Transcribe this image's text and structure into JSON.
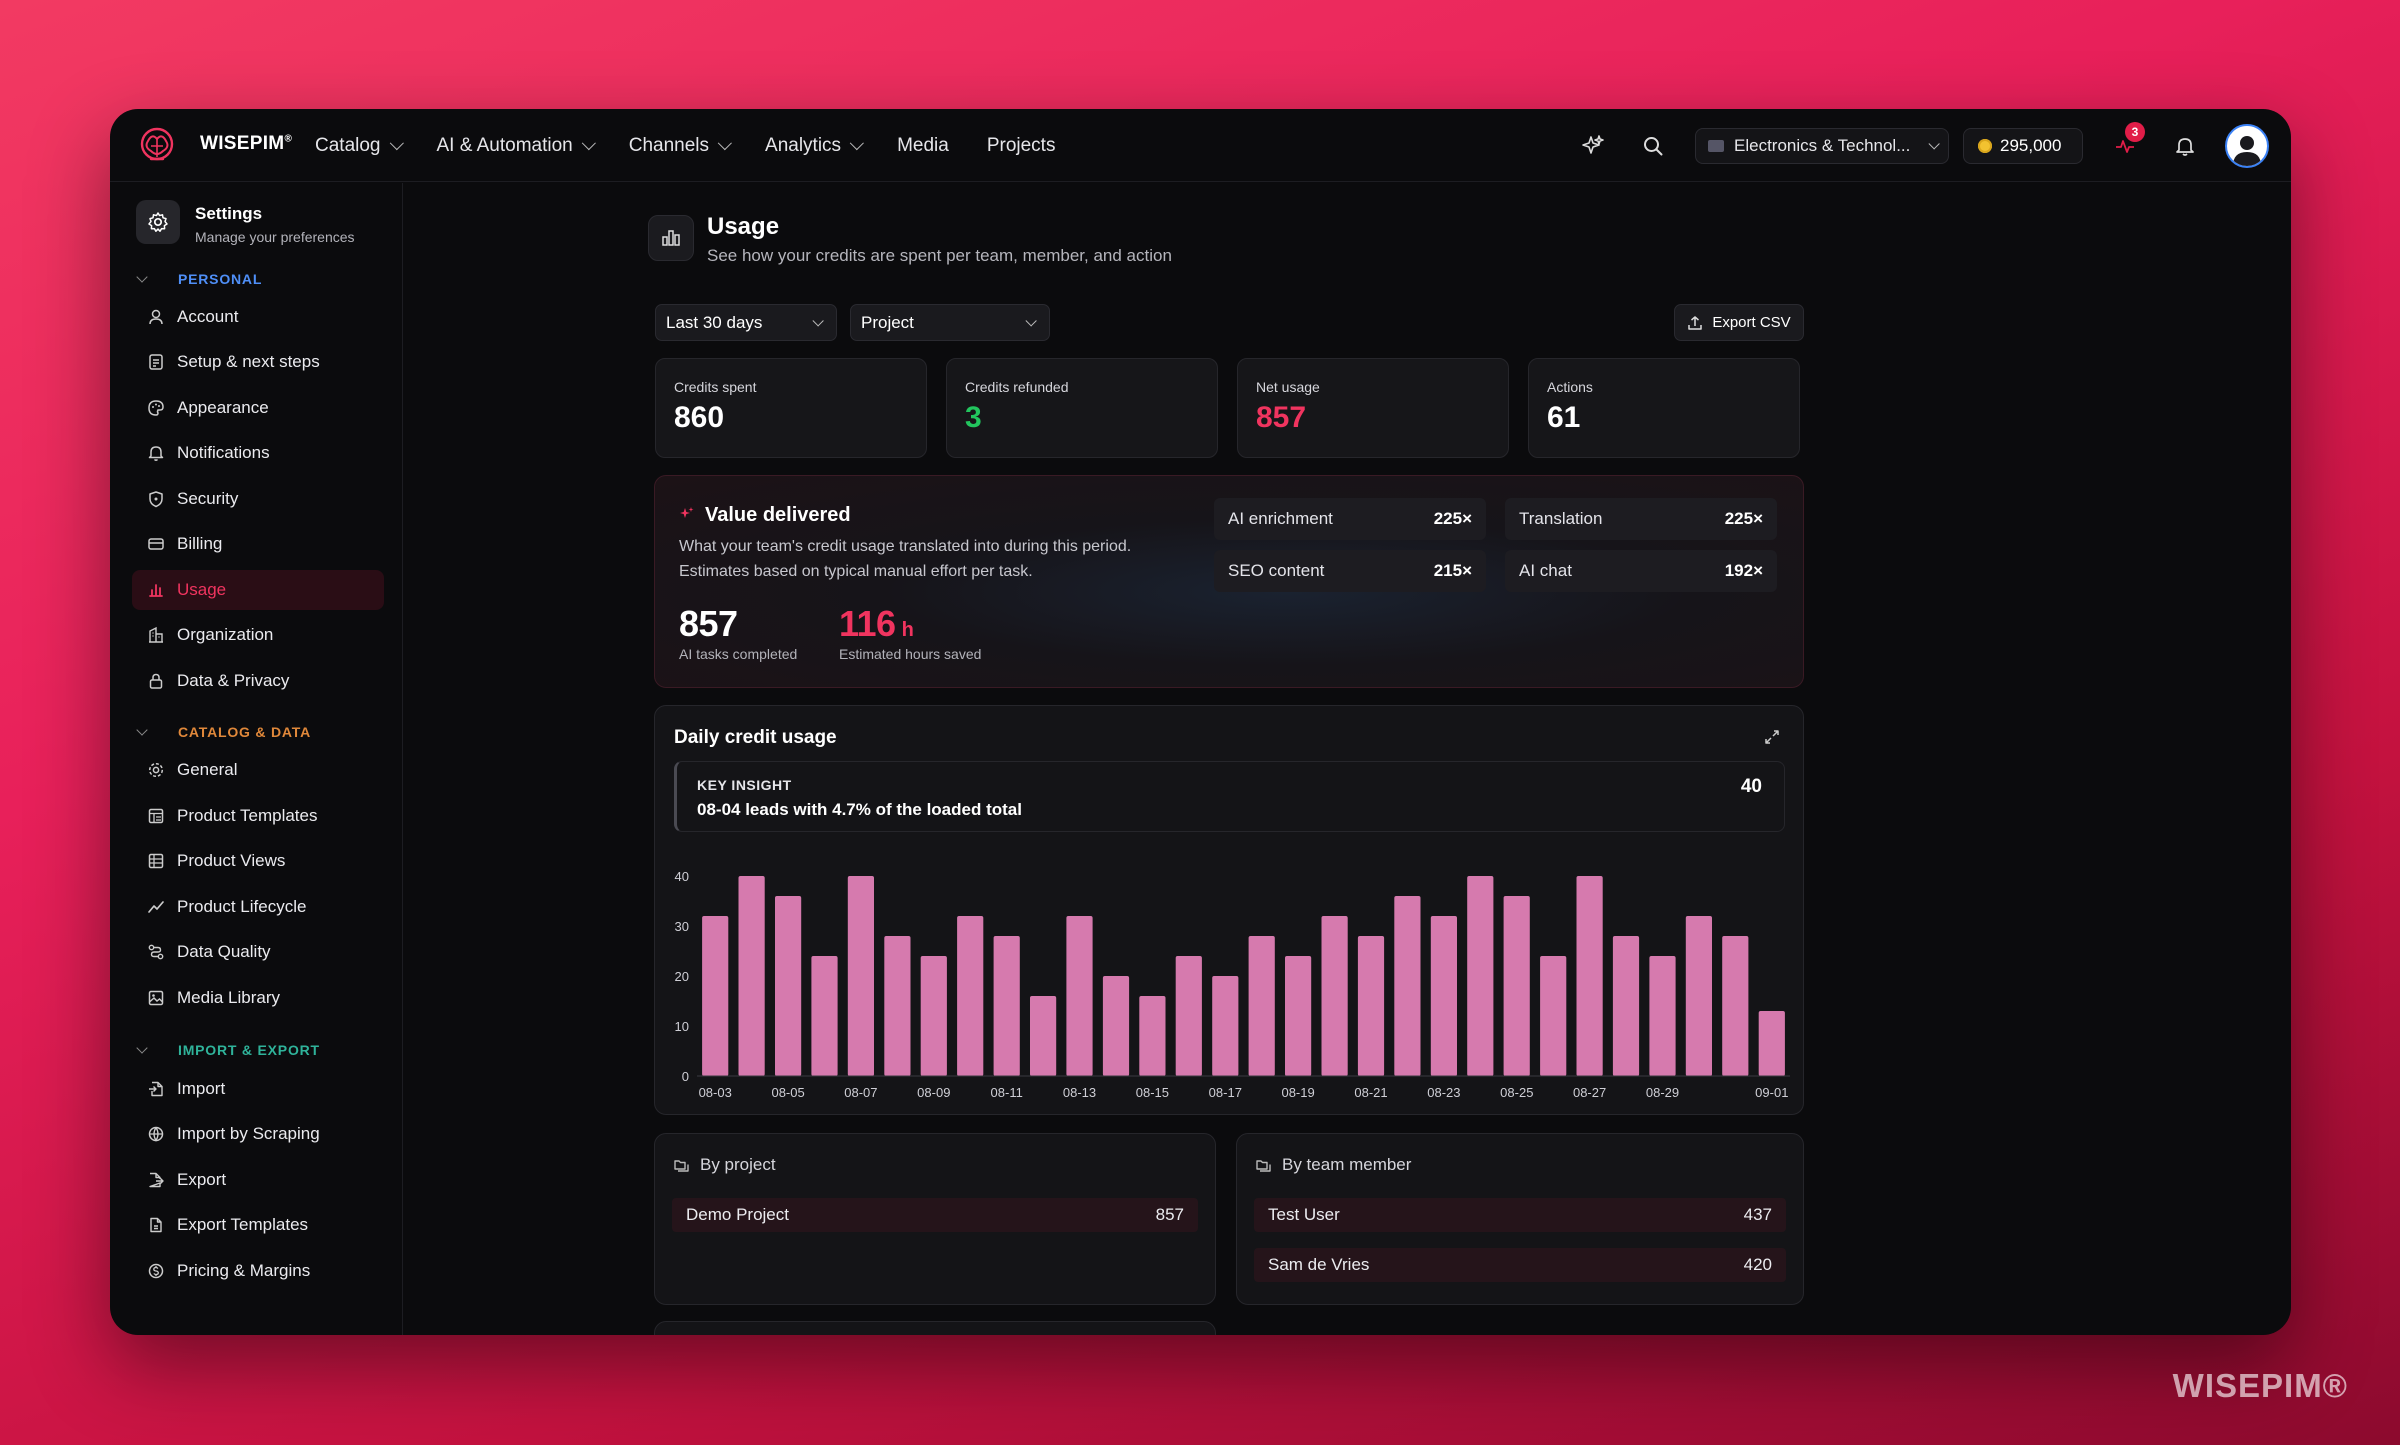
{
  "brand": {
    "name": "WISEPIM",
    "mark": "®"
  },
  "topnav": {
    "items": [
      {
        "label": "Catalog",
        "dropdown": true
      },
      {
        "label": "AI & Automation",
        "dropdown": true
      },
      {
        "label": "Channels",
        "dropdown": true
      },
      {
        "label": "Analytics",
        "dropdown": true
      },
      {
        "label": "Media",
        "dropdown": false
      },
      {
        "label": "Projects",
        "dropdown": false
      }
    ],
    "store_select": "Electronics & Technol...",
    "credits": "295,000",
    "activity_badge": "3"
  },
  "sidebar": {
    "title": "Settings",
    "subtitle": "Manage your preferences",
    "sections": [
      {
        "label": "PERSONAL",
        "color": "#4f8ff7"
      },
      {
        "label": "CATALOG & DATA",
        "color": "#e0883a"
      },
      {
        "label": "IMPORT & EXPORT",
        "color": "#2fb39a"
      }
    ],
    "personal": [
      "Account",
      "Setup & next steps",
      "Appearance",
      "Notifications",
      "Security",
      "Billing",
      "Usage",
      "Organization",
      "Data & Privacy"
    ],
    "catalog": [
      "General",
      "Product Templates",
      "Product Views",
      "Product Lifecycle",
      "Data Quality",
      "Media Library"
    ],
    "import_export": [
      "Import",
      "Import by Scraping",
      "Export",
      "Export Templates",
      "Pricing & Margins"
    ],
    "active": "Usage"
  },
  "page": {
    "title": "Usage",
    "subtitle": "See how your credits are spent per team, member, and action",
    "filter_period": "Last 30 days",
    "filter_group": "Project",
    "export_label": "Export CSV"
  },
  "stats": [
    {
      "label": "Credits spent",
      "value": "860",
      "color": "#ffffff"
    },
    {
      "label": "Credits refunded",
      "value": "3",
      "color": "#22c55e"
    },
    {
      "label": "Net usage",
      "value": "857",
      "color": "#f0345f"
    },
    {
      "label": "Actions",
      "value": "61",
      "color": "#ffffff"
    }
  ],
  "value_delivered": {
    "title": "Value delivered",
    "desc1": "What your team's credit usage translated into during this period.",
    "desc2": "Estimates based on typical manual effort per task.",
    "tasks_value": "857",
    "tasks_label": "AI tasks completed",
    "hours_value": "116",
    "hours_unit": "h",
    "hours_label": "Estimated hours saved",
    "chips": [
      {
        "name": "AI enrichment",
        "mult": "225×"
      },
      {
        "name": "Translation",
        "mult": "225×"
      },
      {
        "name": "SEO content",
        "mult": "215×"
      },
      {
        "name": "AI chat",
        "mult": "192×"
      }
    ]
  },
  "daily_usage": {
    "title": "Daily credit usage",
    "insight_key": "KEY INSIGHT",
    "insight_text": "08-04 leads with 4.7% of the loaded total",
    "insight_value": "40"
  },
  "chart_data": {
    "type": "bar",
    "categories": [
      "08-03",
      "08-04",
      "08-05",
      "08-06",
      "08-07",
      "08-08",
      "08-09",
      "08-10",
      "08-11",
      "08-12",
      "08-13",
      "08-14",
      "08-15",
      "08-16",
      "08-17",
      "08-18",
      "08-19",
      "08-20",
      "08-21",
      "08-22",
      "08-23",
      "08-24",
      "08-25",
      "08-26",
      "08-27",
      "08-28",
      "08-29",
      "08-30",
      "08-31",
      "09-01"
    ],
    "values": [
      32,
      40,
      36,
      24,
      40,
      28,
      24,
      32,
      28,
      16,
      32,
      20,
      16,
      24,
      20,
      28,
      24,
      32,
      28,
      36,
      32,
      40,
      36,
      24,
      40,
      28,
      24,
      32,
      28,
      13
    ],
    "tick_labels": [
      "08-03",
      "08-05",
      "08-07",
      "08-09",
      "08-11",
      "08-13",
      "08-15",
      "08-17",
      "08-19",
      "08-21",
      "08-23",
      "08-25",
      "08-27",
      "08-29",
      "09-01"
    ],
    "y_ticks": [
      0,
      10,
      20,
      30,
      40
    ],
    "ylim": [
      0,
      40
    ],
    "bar_color": "#d67aae"
  },
  "by_project": {
    "title": "By project",
    "rows": [
      {
        "name": "Demo Project",
        "value": "857"
      }
    ]
  },
  "by_member": {
    "title": "By team member",
    "rows": [
      {
        "name": "Test User",
        "value": "437"
      },
      {
        "name": "Sam de Vries",
        "value": "420"
      }
    ]
  },
  "watermark": "WISEPIM®"
}
